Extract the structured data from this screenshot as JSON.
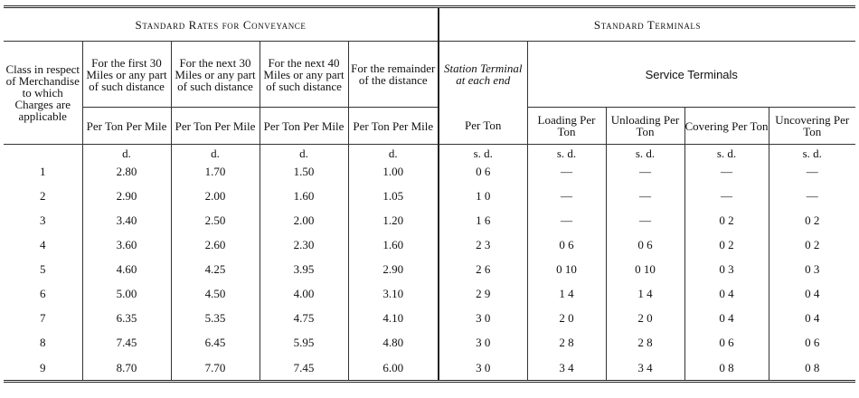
{
  "headers": {
    "conveyance_group": "Standard Rates for Conveyance",
    "terminals_group": "Standard Terminals",
    "class_col": "Class in respect of Merchandise to which Charges are applicable",
    "col_first30": "For the first 30 Miles or any part of such distance",
    "col_next30": "For the next 30 Miles or any part of such distance",
    "col_next40": "For the next 40 Miles or any part of such distance",
    "col_remainder": "For the remainder of the distance",
    "station_terminal": "Station Terminal at each end",
    "service_terminals": "Service Terminals",
    "per_ton_per_mile": "Per Ton Per Mile",
    "per_ton": "Per Ton",
    "loading": "Loading Per Ton",
    "unloading": "Unloading Per Ton",
    "covering": "Covering Per Ton",
    "uncovering": "Uncovering Per Ton"
  },
  "units": {
    "d": "d.",
    "sd": "s. d."
  },
  "rows": [
    {
      "class": "1",
      "first30": "2.80",
      "next30": "1.70",
      "next40": "1.50",
      "remainder": "1.00",
      "station": "0 6",
      "loading": "—",
      "unloading": "—",
      "covering": "—",
      "uncovering": "—"
    },
    {
      "class": "2",
      "first30": "2.90",
      "next30": "2.00",
      "next40": "1.60",
      "remainder": "1.05",
      "station": "1 0",
      "loading": "—",
      "unloading": "—",
      "covering": "—",
      "uncovering": "—"
    },
    {
      "class": "3",
      "first30": "3.40",
      "next30": "2.50",
      "next40": "2.00",
      "remainder": "1.20",
      "station": "1 6",
      "loading": "—",
      "unloading": "—",
      "covering": "0 2",
      "uncovering": "0 2"
    },
    {
      "class": "4",
      "first30": "3.60",
      "next30": "2.60",
      "next40": "2.30",
      "remainder": "1.60",
      "station": "2 3",
      "loading": "0 6",
      "unloading": "0 6",
      "covering": "0 2",
      "uncovering": "0 2"
    },
    {
      "class": "5",
      "first30": "4.60",
      "next30": "4.25",
      "next40": "3.95",
      "remainder": "2.90",
      "station": "2 6",
      "loading": "0 10",
      "unloading": "0 10",
      "covering": "0 3",
      "uncovering": "0 3"
    },
    {
      "class": "6",
      "first30": "5.00",
      "next30": "4.50",
      "next40": "4.00",
      "remainder": "3.10",
      "station": "2 9",
      "loading": "1 4",
      "unloading": "1 4",
      "covering": "0 4",
      "uncovering": "0 4"
    },
    {
      "class": "7",
      "first30": "6.35",
      "next30": "5.35",
      "next40": "4.75",
      "remainder": "4.10",
      "station": "3 0",
      "loading": "2 0",
      "unloading": "2 0",
      "covering": "0 4",
      "uncovering": "0 4"
    },
    {
      "class": "8",
      "first30": "7.45",
      "next30": "6.45",
      "next40": "5.95",
      "remainder": "4.80",
      "station": "3 0",
      "loading": "2 8",
      "unloading": "2 8",
      "covering": "0 6",
      "uncovering": "0 6"
    },
    {
      "class": "9",
      "first30": "8.70",
      "next30": "7.70",
      "next40": "7.45",
      "remainder": "6.00",
      "station": "3 0",
      "loading": "3 4",
      "unloading": "3 4",
      "covering": "0 8",
      "uncovering": "0 8"
    }
  ]
}
